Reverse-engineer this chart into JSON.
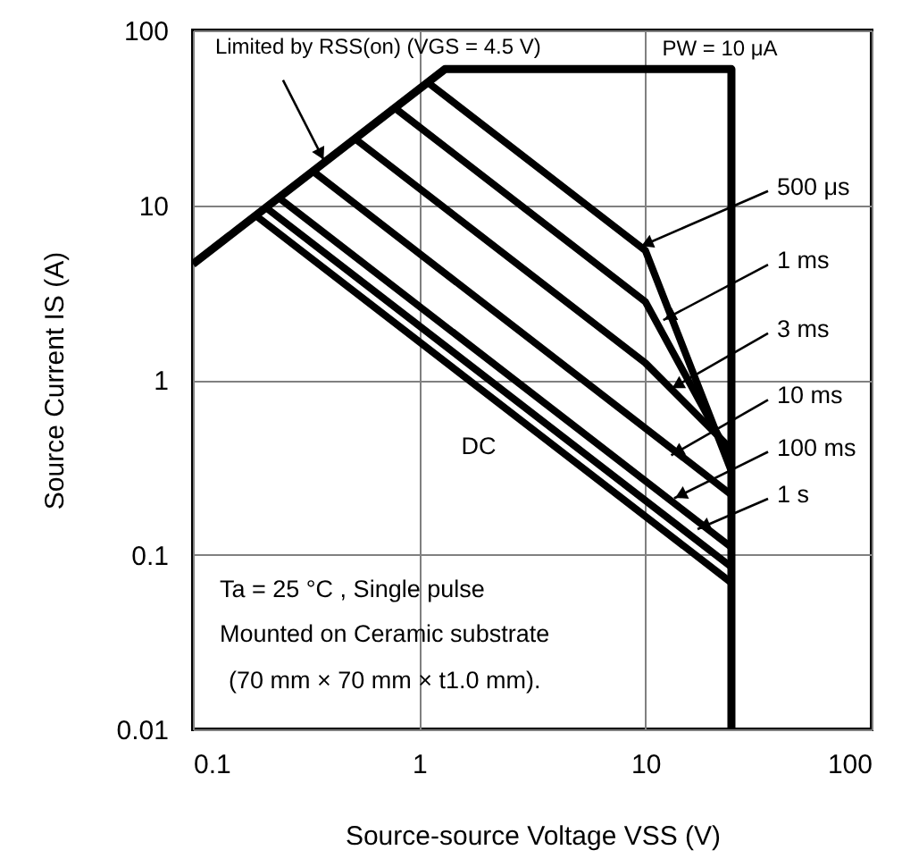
{
  "chart_data": {
    "type": "line",
    "xlabel": "Source-source Voltage VSS (V)",
    "ylabel": "Source Current IS (A)",
    "log": "xy",
    "grid": true,
    "xlim": [
      0.1,
      100
    ],
    "ylim": [
      0.01,
      100
    ],
    "xticks": [
      0.1,
      1,
      10,
      100
    ],
    "yticks": [
      0.01,
      0.1,
      1,
      10,
      100
    ],
    "series": [
      {
        "color": "#000000",
        "x": [
          0.1,
          1.3,
          24,
          24
        ],
        "values": [
          4.6,
          60,
          60,
          0.01
        ]
      },
      {
        "color": "#000000",
        "x": [
          1.1,
          10,
          24
        ],
        "values": [
          50,
          5.5,
          0.3
        ]
      },
      {
        "color": "#000000",
        "x": [
          0.78,
          10,
          24
        ],
        "values": [
          36,
          2.8,
          0.35
        ]
      },
      {
        "color": "#000000",
        "x": [
          0.52,
          10,
          24
        ],
        "values": [
          24,
          1.25,
          0.4
        ]
      },
      {
        "color": "#000000",
        "x": [
          0.34,
          24
        ],
        "values": [
          15.6,
          0.22
        ]
      },
      {
        "color": "#000000",
        "x": [
          0.24,
          24
        ],
        "values": [
          11,
          0.11
        ]
      },
      {
        "color": "#000000",
        "x": [
          0.21,
          24
        ],
        "values": [
          9.7,
          0.085
        ]
      },
      {
        "color": "#000000",
        "x": [
          0.19,
          24
        ],
        "values": [
          8.7,
          0.069
        ]
      }
    ],
    "annotations": [
      {
        "text": "Limited by RSS(on) (VGS = 4.5 V)",
        "x": 0.38,
        "y": 18
      },
      "PW = 10 μA",
      {
        "text": "500 μs",
        "x": 9.5,
        "y": 5.8
      },
      {
        "text": "1 ms",
        "x": 12,
        "y": 2.2
      },
      {
        "text": "3 ms",
        "x": 13,
        "y": 0.89
      },
      {
        "text": "10 ms",
        "x": 13,
        "y": 0.37
      },
      {
        "text": "100 ms",
        "x": 13.4,
        "y": 0.21
      },
      {
        "text": "1 s",
        "x": 17,
        "y": 0.14
      },
      "DC",
      "Ta = 25 °C , Single pulse",
      "Mounted on Ceramic substrate",
      "(70 mm × 70 mm × t1.0 mm)."
    ]
  }
}
